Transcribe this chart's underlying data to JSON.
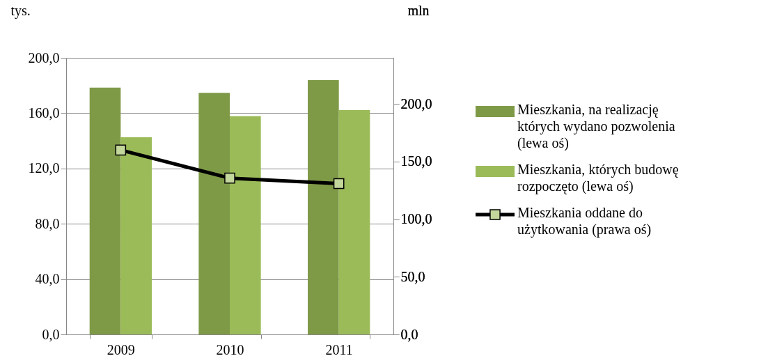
{
  "chart_data": {
    "type": "bar",
    "categories": [
      "2009",
      "2010",
      "2011"
    ],
    "series": [
      {
        "name": "Mieszkania, na realizację których wydano pozwolenia (lewa oś)",
        "color": "#7f9a47",
        "values": [
          178.5,
          174.7,
          183.9
        ]
      },
      {
        "name": "Mieszkania, których budowę rozpoczęto (lewa oś)",
        "color": "#9bbb59",
        "values": [
          142.6,
          157.8,
          162.2
        ]
      },
      {
        "name": "Mieszkania oddane do użytkowania (prawa oś)",
        "type": "line",
        "axis": "y2",
        "color": "#000000",
        "marker": "square",
        "line_style": "solid",
        "values": [
          160.0,
          135.6,
          130.9
        ]
      }
    ],
    "ylabel": "tys.",
    "y2label": "mln",
    "ylim": [
      0,
      200
    ],
    "yticks": [
      {
        "value": 0,
        "label": "0,0"
      },
      {
        "value": 40,
        "label": "40,0"
      },
      {
        "value": 80,
        "label": "80,0"
      },
      {
        "value": 120,
        "label": "120,0"
      },
      {
        "value": 160,
        "label": "160,0"
      },
      {
        "value": 200,
        "label": "200,0"
      }
    ],
    "y2lim": [
      0,
      240
    ],
    "y2ticks": [
      {
        "value": 0,
        "label": "0,0"
      },
      {
        "value": 50,
        "label": "50,0"
      },
      {
        "value": 100,
        "label": "100,0"
      },
      {
        "value": 150,
        "label": "150,0"
      },
      {
        "value": 200,
        "label": "200,0"
      }
    ],
    "grid": "y",
    "legend": "right"
  }
}
